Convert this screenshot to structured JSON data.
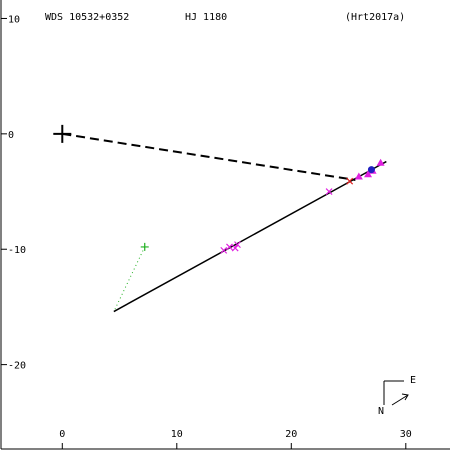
{
  "chart_data": {
    "type": "orbit",
    "header": {
      "left": "WDS 10532+0352",
      "center": "HJ 1180",
      "right": "(Hrt2017a)"
    },
    "xlim": [
      -5.44,
      33.86
    ],
    "ylim": [
      -27.4,
      11.6
    ],
    "xticks": [
      0,
      10,
      20,
      30
    ],
    "yticks": [
      10,
      0,
      -10,
      -20
    ],
    "primary": {
      "x": 0,
      "y": 0,
      "color": "#000000"
    },
    "orbit": {
      "x": [
        4.5,
        28.3
      ],
      "y": [
        -15.4,
        -2.4
      ],
      "color": "#000000"
    },
    "node_line": {
      "x": [
        0,
        25.6
      ],
      "y": [
        0,
        -4.0
      ],
      "color": "#000000"
    },
    "markers": [
      {
        "shape": "x",
        "color": "#e020e0",
        "x": [
          23.3,
          14.1,
          14.6,
          15.1,
          15.3
        ],
        "y": [
          -5.0,
          -10.1,
          -9.8,
          -9.9,
          -9.6
        ]
      },
      {
        "shape": "triangle",
        "color": "#e020e0",
        "x": [
          25.9,
          26.7,
          27.1,
          27.8
        ],
        "y": [
          -3.7,
          -3.5,
          -3.2,
          -2.5
        ]
      },
      {
        "shape": "x",
        "color": "#e02020",
        "x": [
          25.1
        ],
        "y": [
          -4.1
        ]
      },
      {
        "shape": "dot",
        "color": "#2020c0",
        "x": [
          27.0
        ],
        "y": [
          -3.1
        ]
      },
      {
        "shape": "plus",
        "color": "#20b020",
        "x": [
          7.2
        ],
        "y": [
          -9.8
        ]
      }
    ],
    "residual": {
      "x": [
        7.2,
        4.6
      ],
      "y": [
        -9.8,
        -15.2
      ],
      "color": "#20b020"
    },
    "compass": {
      "east": "E",
      "north": "N"
    }
  }
}
